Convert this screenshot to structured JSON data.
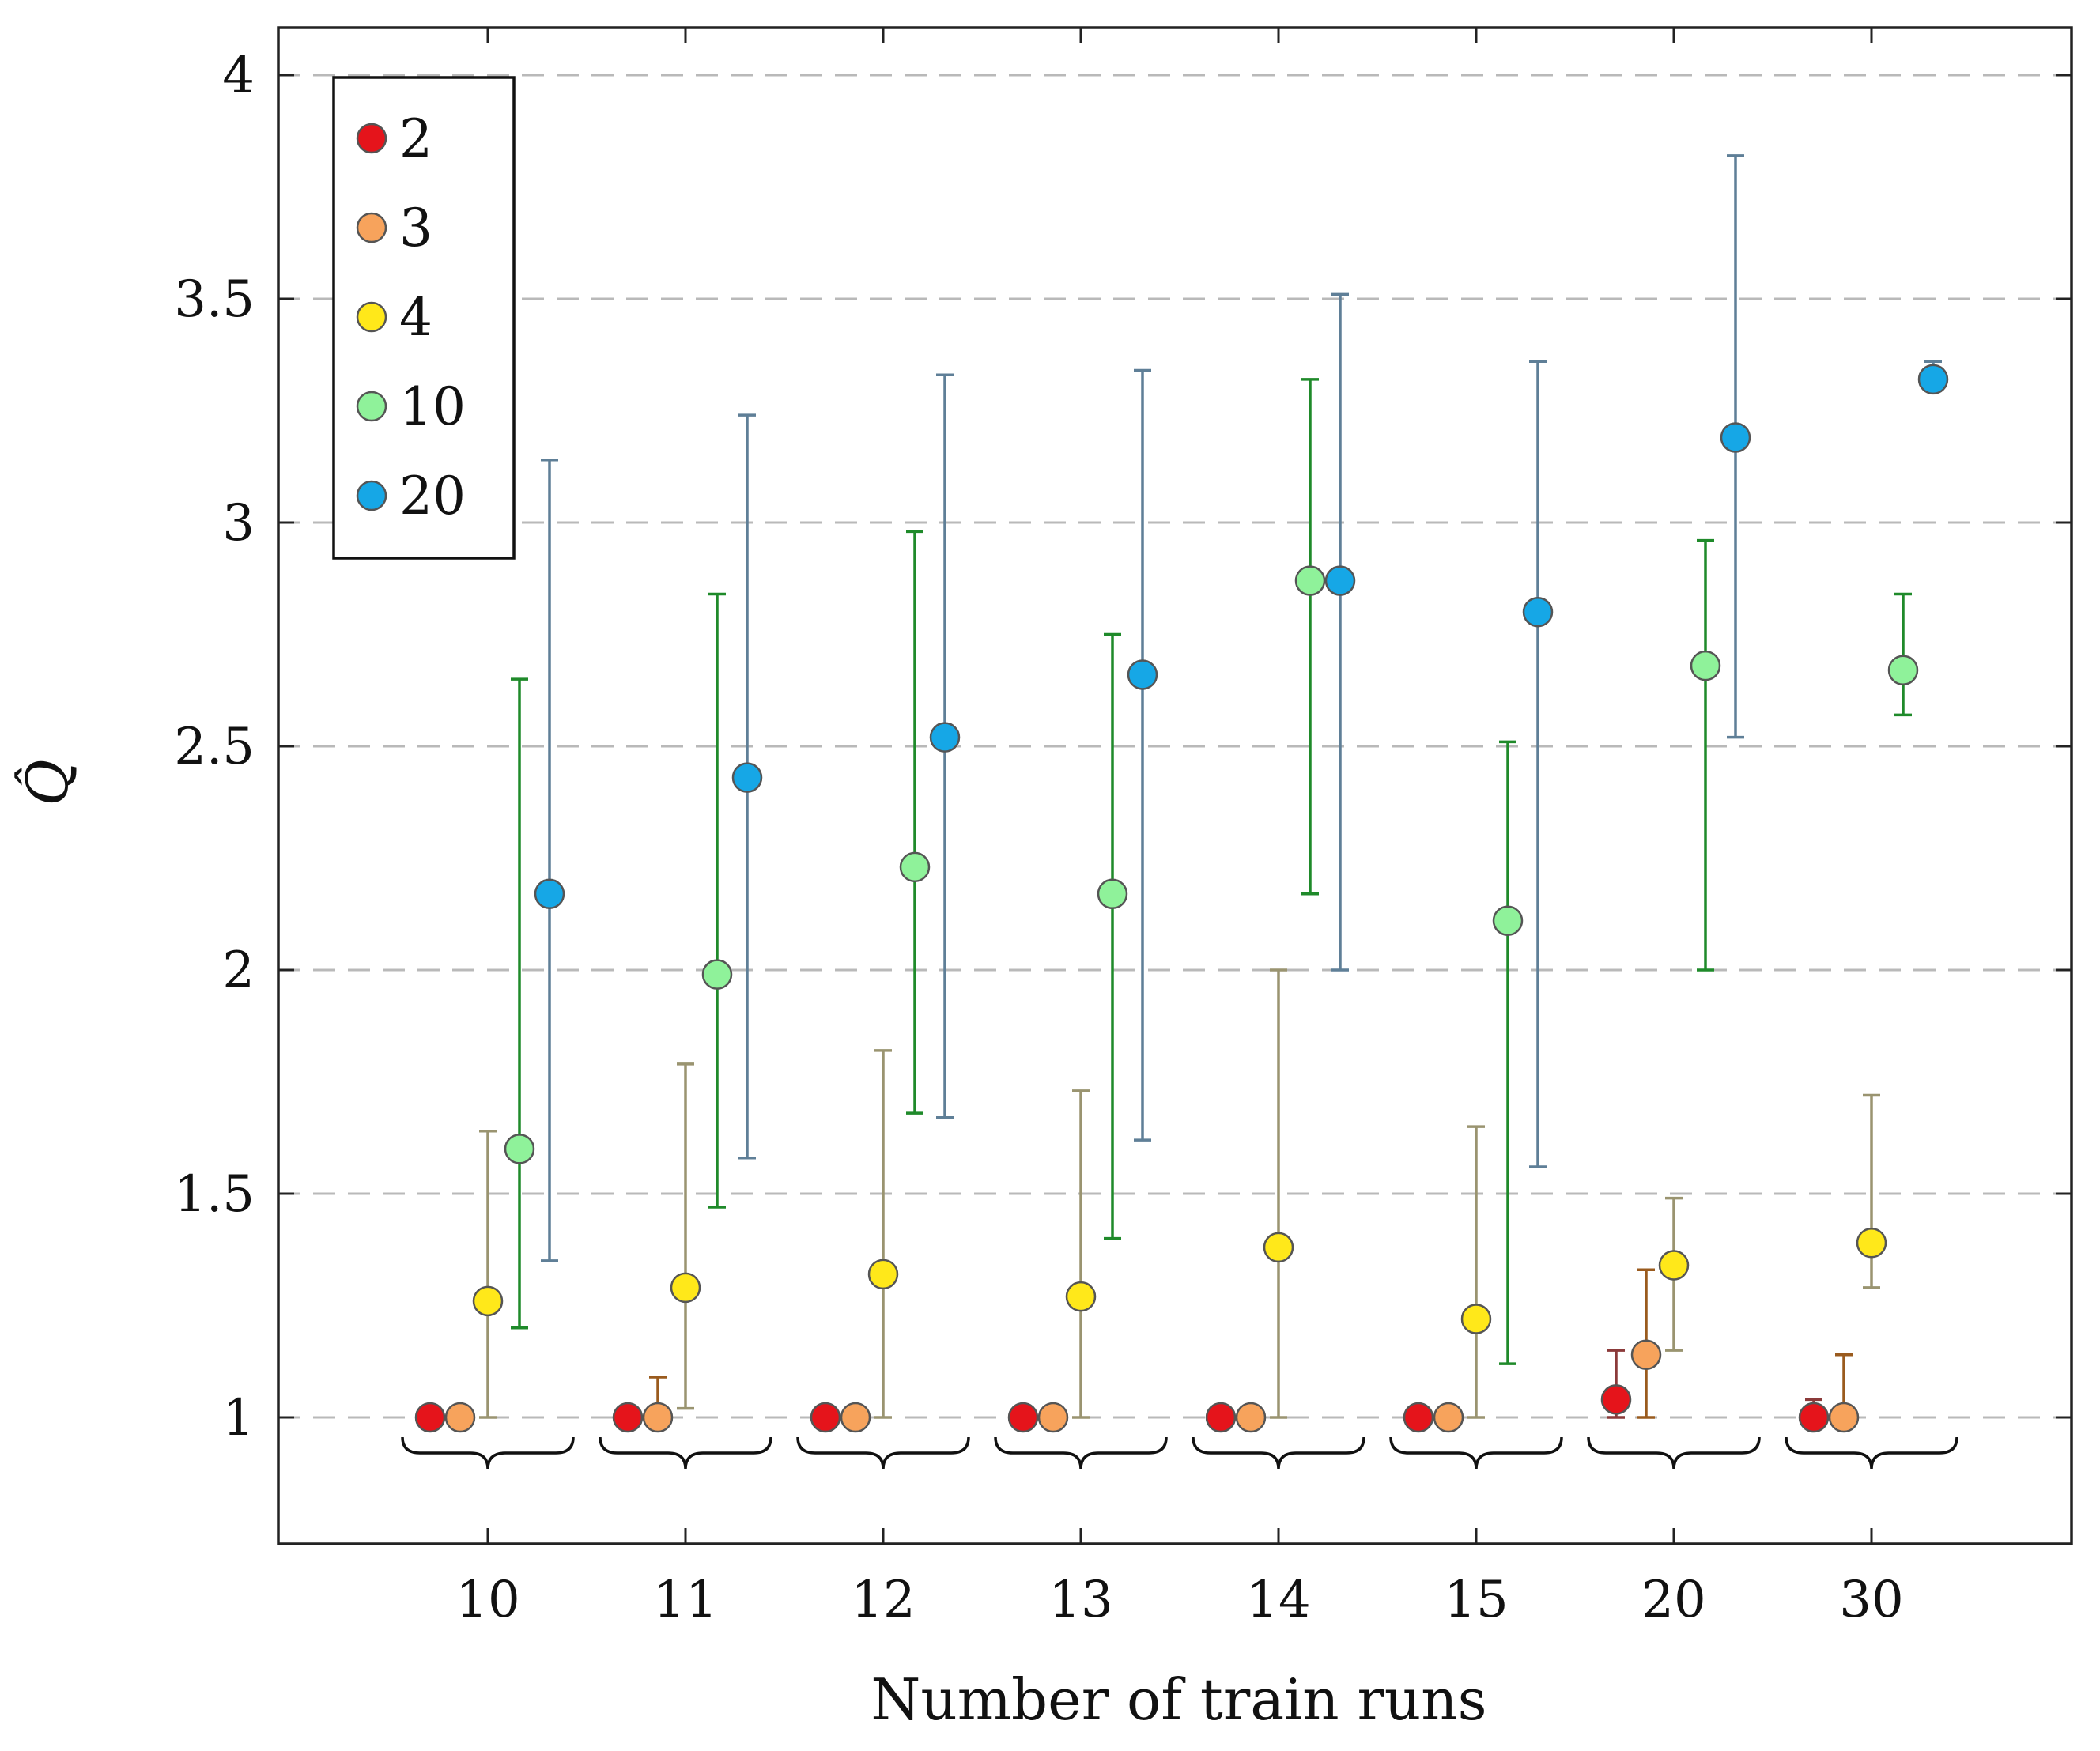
{
  "chart_data": {
    "type": "scatter",
    "title": "",
    "xlabel": "Number of train runs",
    "ylabel": "Q̂",
    "ylim": [
      0.7,
      4.1
    ],
    "yticks": [
      1,
      1.5,
      2,
      2.5,
      3,
      3.5,
      4
    ],
    "ytick_labels": [
      "1",
      "1.5",
      "2",
      "2.5",
      "3",
      "3.5",
      "4"
    ],
    "categories": [
      "10",
      "11",
      "12",
      "13",
      "14",
      "15",
      "20",
      "30"
    ],
    "grid": "horizontal dashed",
    "legend_position": "top-left",
    "series": [
      {
        "name": "2",
        "color": "#e5141b",
        "error_color": "#8b3a3a",
        "values": [
          1.0,
          1.0,
          1.0,
          1.0,
          1.0,
          1.0,
          1.04,
          1.0
        ],
        "lower": [
          null,
          null,
          null,
          null,
          null,
          null,
          1.0,
          1.0
        ],
        "upper": [
          null,
          null,
          null,
          null,
          null,
          null,
          1.15,
          1.04
        ]
      },
      {
        "name": "3",
        "color": "#f7a35c",
        "error_color": "#9a5b1e",
        "values": [
          1.0,
          1.0,
          1.0,
          1.0,
          1.0,
          1.0,
          1.14,
          1.0
        ],
        "lower": [
          null,
          1.0,
          null,
          null,
          null,
          null,
          1.0,
          1.0
        ],
        "upper": [
          null,
          1.09,
          null,
          null,
          null,
          null,
          1.33,
          1.14
        ]
      },
      {
        "name": "4",
        "color": "#ffe81a",
        "error_color": "#9a9470",
        "values": [
          1.26,
          1.29,
          1.32,
          1.27,
          1.38,
          1.22,
          1.34,
          1.39
        ],
        "lower": [
          1.0,
          1.02,
          1.0,
          1.0,
          1.0,
          1.0,
          1.15,
          1.29
        ],
        "upper": [
          1.64,
          1.79,
          1.82,
          1.73,
          2.0,
          1.65,
          1.49,
          1.72
        ]
      },
      {
        "name": "10",
        "color": "#8ff29a",
        "error_color": "#1f8a2a",
        "values": [
          1.6,
          1.99,
          2.23,
          2.17,
          2.87,
          2.11,
          2.68,
          2.67
        ],
        "lower": [
          1.2,
          1.47,
          1.68,
          1.4,
          2.17,
          1.12,
          2.0,
          2.57
        ],
        "upper": [
          2.65,
          2.84,
          2.98,
          2.75,
          3.32,
          2.51,
          2.96,
          2.84
        ]
      },
      {
        "name": "20",
        "color": "#16a7e6",
        "error_color": "#5f7f97",
        "values": [
          2.17,
          2.43,
          2.52,
          2.66,
          2.87,
          2.8,
          3.19,
          3.32
        ],
        "lower": [
          1.35,
          1.58,
          1.67,
          1.62,
          2.0,
          1.56,
          2.52,
          3.31
        ],
        "upper": [
          3.14,
          3.24,
          3.33,
          3.34,
          3.51,
          3.36,
          3.82,
          3.36
        ]
      }
    ]
  }
}
